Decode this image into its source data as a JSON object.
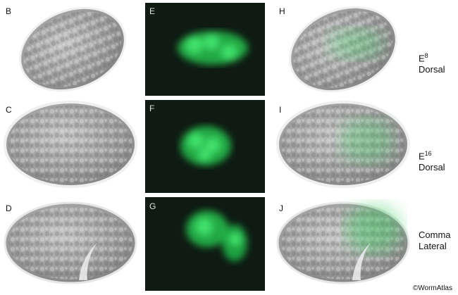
{
  "panels": {
    "B": "B",
    "C": "C",
    "D": "D",
    "E": "E",
    "F": "F",
    "G": "G",
    "H": "H",
    "I": "I",
    "J": "J"
  },
  "stages": [
    {
      "base": "E",
      "sup": "8",
      "view": "Dorsal"
    },
    {
      "base": "E",
      "sup": "16",
      "view": "Dorsal"
    },
    {
      "base": "Comma",
      "sup": "",
      "view": "Lateral"
    }
  ],
  "credit": "©WormAtlas",
  "colors": {
    "gfp": "#2fd05a",
    "fluor_bg": "#0f1a12",
    "dic_bg": "#d9d9d9"
  }
}
